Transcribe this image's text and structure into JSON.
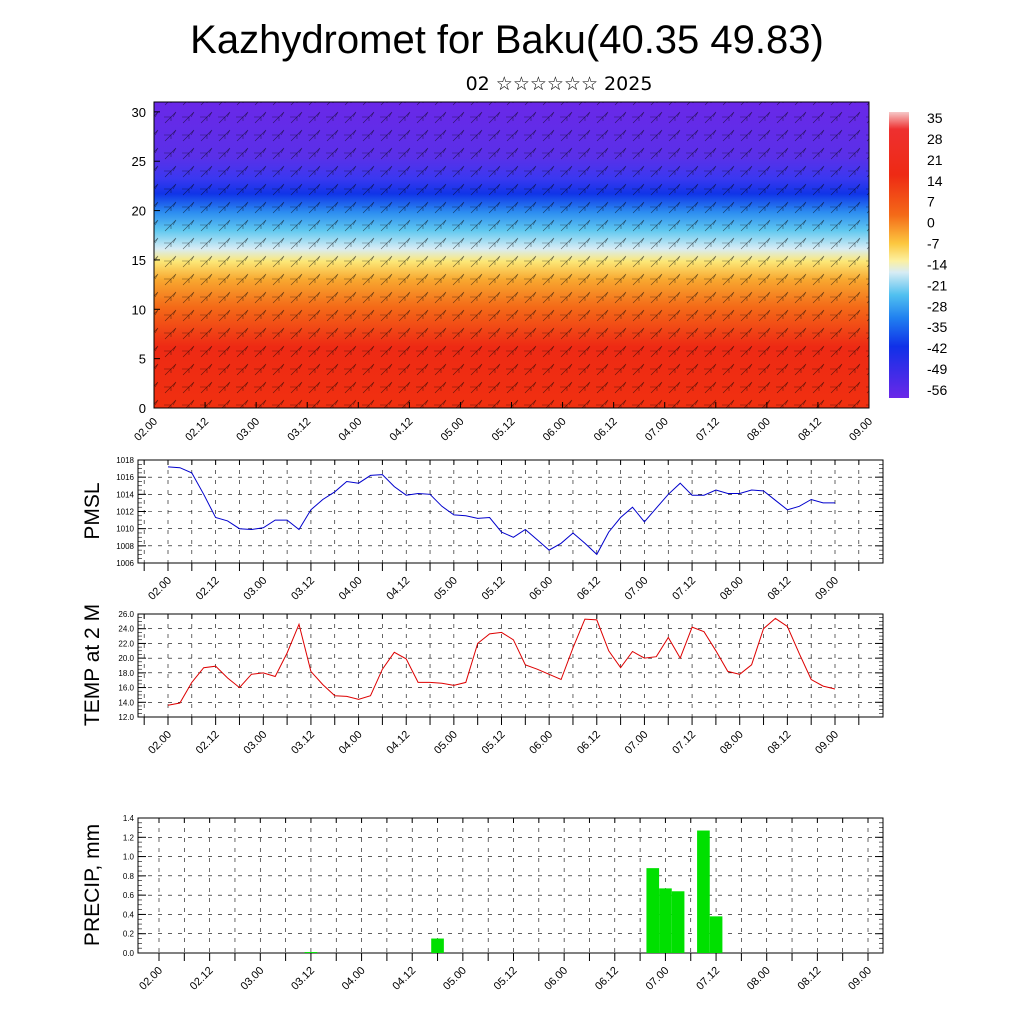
{
  "title": "Kazhydromet for Baku(40.35 49.83)",
  "subtitle": "02 ☆☆☆☆☆☆ 2025",
  "colors": {
    "pressure_line": "#0000cc",
    "temp_line": "#dd0000",
    "precip_bar": "#00e000"
  },
  "chart_data": [
    {
      "type": "heatmap",
      "name": "upper-air-cross-section",
      "x_tick_labels": [
        "02.00",
        "02.12",
        "03.00",
        "03.12",
        "04.00",
        "04.12",
        "05.00",
        "05.12",
        "06.00",
        "06.12",
        "07.00",
        "07.12",
        "08.00",
        "08.12",
        "09.00"
      ],
      "y_tick_labels": [
        "0",
        "5",
        "10",
        "15",
        "20",
        "25",
        "30"
      ],
      "ylim": [
        0,
        31
      ],
      "colorbar_labels": [
        "35",
        "28",
        "21",
        "14",
        "7",
        "0",
        "-7",
        "-14",
        "-21",
        "-28",
        "-35",
        "-42",
        "-49",
        "-56"
      ],
      "overlay": "wind barbs"
    },
    {
      "type": "line",
      "ylabel": "PMSL",
      "ylim": [
        1006,
        1018
      ],
      "y_tick_labels": [
        "1006",
        "1008",
        "1010",
        "1012",
        "1014",
        "1016",
        "1018"
      ],
      "x_tick_labels": [
        "02.00",
        "02.12",
        "03.00",
        "03.12",
        "04.00",
        "04.12",
        "05.00",
        "05.12",
        "06.00",
        "06.12",
        "07.00",
        "07.12",
        "08.00",
        "08.12",
        "09.00"
      ],
      "x": [
        0,
        3,
        6,
        9,
        12,
        15,
        18,
        21,
        24,
        27,
        30,
        33,
        36,
        39,
        42,
        45,
        48,
        51,
        54,
        57,
        60,
        63,
        66,
        69,
        72,
        75,
        78,
        81,
        84,
        87,
        90,
        93,
        96,
        99,
        102,
        105,
        108,
        111,
        114,
        117,
        120,
        123,
        126,
        129,
        132,
        135,
        138,
        141,
        144,
        147,
        150,
        153,
        156,
        159,
        162,
        165,
        168
      ],
      "values": [
        1017.2,
        1017.1,
        1016.5,
        1014.0,
        1011.3,
        1010.9,
        1010.0,
        1009.9,
        1010.1,
        1011.0,
        1011.0,
        1009.9,
        1012.2,
        1013.4,
        1014.3,
        1015.5,
        1015.3,
        1016.2,
        1016.3,
        1014.9,
        1013.9,
        1014.1,
        1014.0,
        1012.6,
        1011.6,
        1011.5,
        1011.2,
        1011.3,
        1009.6,
        1009.0,
        1009.9,
        1008.7,
        1007.5,
        1008.3,
        1009.5,
        1008.3,
        1007.0,
        1009.6,
        1011.3,
        1012.5,
        1010.8,
        1012.4,
        1014.0,
        1015.3,
        1013.9,
        1013.9,
        1014.5,
        1014.1,
        1014.1,
        1014.5,
        1014.4,
        1013.3,
        1012.2,
        1012.6,
        1013.4,
        1013.0,
        1013.0
      ]
    },
    {
      "type": "line",
      "ylabel": "TEMP at 2 M",
      "ylim": [
        12,
        26
      ],
      "y_tick_labels": [
        "12.0",
        "14.0",
        "16.0",
        "18.0",
        "20.0",
        "22.0",
        "24.0",
        "26.0"
      ],
      "x_tick_labels": [
        "02.00",
        "02.12",
        "03.00",
        "03.12",
        "04.00",
        "04.12",
        "05.00",
        "05.12",
        "06.00",
        "06.12",
        "07.00",
        "07.12",
        "08.00",
        "08.12",
        "09.00"
      ],
      "x": [
        0,
        3,
        6,
        9,
        12,
        15,
        18,
        21,
        24,
        27,
        30,
        33,
        36,
        39,
        42,
        45,
        48,
        51,
        54,
        57,
        60,
        63,
        66,
        69,
        72,
        75,
        78,
        81,
        84,
        87,
        90,
        93,
        96,
        99,
        102,
        105,
        108,
        111,
        114,
        117,
        120,
        123,
        126,
        129,
        132,
        135,
        138,
        141,
        144,
        147,
        150,
        153,
        156,
        159,
        162,
        165,
        168
      ],
      "values": [
        13.6,
        13.9,
        16.7,
        18.7,
        18.9,
        17.3,
        16.0,
        17.8,
        18.0,
        17.5,
        20.7,
        24.6,
        18.2,
        16.4,
        14.9,
        14.8,
        14.4,
        14.9,
        18.5,
        20.8,
        19.9,
        16.7,
        16.7,
        16.6,
        16.3,
        16.7,
        22.0,
        23.3,
        23.5,
        22.5,
        19.1,
        18.5,
        17.8,
        17.1,
        21.4,
        25.3,
        25.2,
        21.0,
        18.7,
        20.9,
        20.0,
        20.2,
        22.8,
        20.0,
        24.2,
        23.6,
        21.0,
        18.2,
        17.8,
        19.1,
        24.0,
        25.4,
        24.3,
        20.6,
        17.1,
        16.2,
        15.8
      ]
    },
    {
      "type": "bar",
      "ylabel": "PRECIP, mm",
      "ylim": [
        0,
        1.4
      ],
      "y_tick_labels": [
        "0.0",
        "0.2",
        "0.4",
        "0.6",
        "0.8",
        "1.0",
        "1.2",
        "1.4"
      ],
      "x_tick_labels": [
        "02.00",
        "02.12",
        "03.00",
        "03.12",
        "04.00",
        "04.12",
        "05.00",
        "05.12",
        "06.00",
        "06.12",
        "07.00",
        "07.12",
        "08.00",
        "08.12",
        "09.00"
      ],
      "x": [
        36,
        66,
        117,
        120,
        123,
        129,
        132
      ],
      "values": [
        0.01,
        0.15,
        0.88,
        0.67,
        0.64,
        1.27,
        0.38
      ]
    }
  ]
}
